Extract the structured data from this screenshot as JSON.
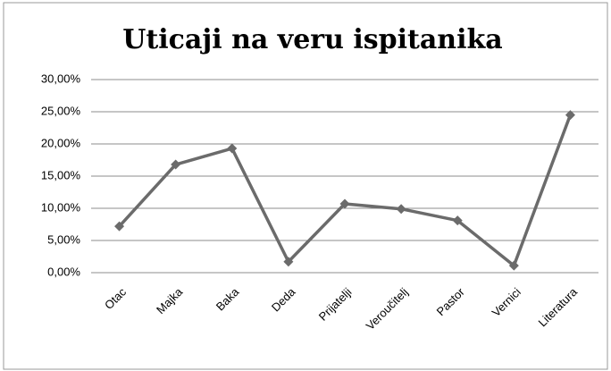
{
  "chart_data": {
    "type": "line",
    "title": "Uticaji na veru ispitanika",
    "categories": [
      "Otac",
      "Majka",
      "Baka",
      "Deda",
      "Prijatelji",
      "Veroučitelj",
      "Pastor",
      "Vernici",
      "Literatura"
    ],
    "values": [
      7.2,
      16.8,
      19.3,
      1.7,
      10.7,
      9.9,
      8.1,
      1.1,
      24.5
    ],
    "color": "#6b6b6b",
    "ylim": [
      0,
      30
    ],
    "yticks": [
      {
        "value": 0,
        "label": "0,00%"
      },
      {
        "value": 5,
        "label": "5,00%"
      },
      {
        "value": 10,
        "label": "10,00%"
      },
      {
        "value": 15,
        "label": "15,00%"
      },
      {
        "value": 20,
        "label": "20,00%"
      },
      {
        "value": 25,
        "label": "25,00%"
      },
      {
        "value": 30,
        "label": "30,00%"
      }
    ],
    "grid": true
  }
}
